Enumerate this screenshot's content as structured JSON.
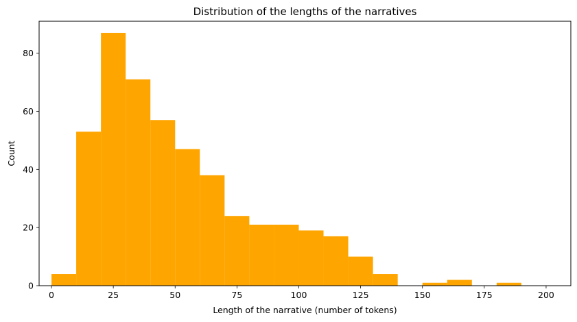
{
  "chart_data": {
    "type": "bar",
    "title": "Distribution of the lengths of the narratives",
    "xlabel": "Length of the narrative (number of tokens)",
    "ylabel": "Count",
    "bins": [
      {
        "x0": 0,
        "x1": 10,
        "count": 4
      },
      {
        "x0": 10,
        "x1": 20,
        "count": 53
      },
      {
        "x0": 20,
        "x1": 30,
        "count": 87
      },
      {
        "x0": 30,
        "x1": 40,
        "count": 71
      },
      {
        "x0": 40,
        "x1": 50,
        "count": 57
      },
      {
        "x0": 50,
        "x1": 60,
        "count": 47
      },
      {
        "x0": 60,
        "x1": 70,
        "count": 38
      },
      {
        "x0": 70,
        "x1": 80,
        "count": 24
      },
      {
        "x0": 80,
        "x1": 90,
        "count": 21
      },
      {
        "x0": 90,
        "x1": 100,
        "count": 21
      },
      {
        "x0": 100,
        "x1": 110,
        "count": 19
      },
      {
        "x0": 110,
        "x1": 120,
        "count": 17
      },
      {
        "x0": 120,
        "x1": 130,
        "count": 10
      },
      {
        "x0": 130,
        "x1": 140,
        "count": 4
      },
      {
        "x0": 140,
        "x1": 150,
        "count": 0
      },
      {
        "x0": 150,
        "x1": 160,
        "count": 1
      },
      {
        "x0": 160,
        "x1": 170,
        "count": 2
      },
      {
        "x0": 170,
        "x1": 180,
        "count": 0
      },
      {
        "x0": 180,
        "x1": 190,
        "count": 1
      },
      {
        "x0": 190,
        "x1": 200,
        "count": 0
      }
    ],
    "xlim": [
      -5,
      210
    ],
    "ylim": [
      0,
      91
    ],
    "xticks": [
      0,
      25,
      50,
      75,
      100,
      125,
      150,
      175,
      200
    ],
    "yticks": [
      0,
      20,
      40,
      60,
      80
    ],
    "bar_color": "#ffa500",
    "grid": false
  }
}
